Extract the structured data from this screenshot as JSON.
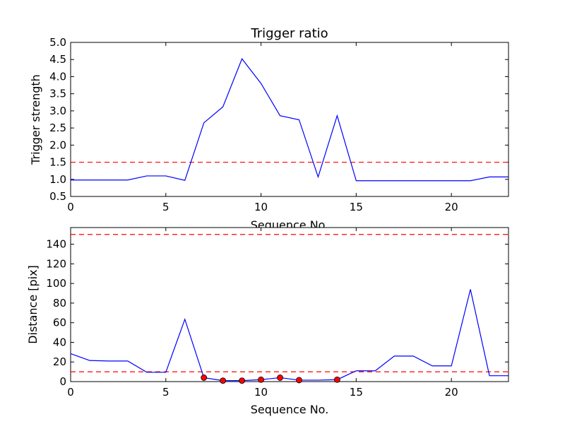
{
  "chart_data": [
    {
      "type": "line",
      "title": "Trigger ratio",
      "xlabel": "Sequence No.",
      "ylabel": "Trigger strength",
      "xlim": [
        0,
        23
      ],
      "ylim": [
        0.5,
        5.0
      ],
      "xticks": [
        0,
        5,
        10,
        15,
        20
      ],
      "yticks": [
        0.5,
        1.0,
        1.5,
        2.0,
        2.5,
        3.0,
        3.5,
        4.0,
        4.5,
        5.0
      ],
      "ytick_labels": [
        "0.5",
        "1.0",
        "1.5",
        "2.0",
        "2.5",
        "3.0",
        "3.5",
        "4.0",
        "4.5",
        "5.0"
      ],
      "line_color": "#0000ff",
      "threshold_color": "#ff0000",
      "series": [
        {
          "x": [
            0,
            1,
            2,
            3,
            4,
            5,
            6,
            7,
            8,
            9,
            10,
            11,
            12,
            13,
            14,
            15,
            16,
            17,
            18,
            19,
            20,
            21,
            22,
            23
          ],
          "values": [
            0.98,
            0.98,
            0.98,
            0.98,
            1.1,
            1.1,
            0.97,
            2.65,
            3.12,
            4.52,
            3.8,
            2.86,
            2.74,
            1.07,
            2.86,
            0.96,
            0.96,
            0.96,
            0.96,
            0.96,
            0.96,
            0.96,
            1.07,
            1.07
          ]
        }
      ],
      "threshold": 1.5
    },
    {
      "type": "line",
      "title": "",
      "xlabel": "Sequence No.",
      "ylabel": "Distance [pix]",
      "xlim": [
        0,
        23
      ],
      "ylim": [
        0,
        157
      ],
      "xticks": [
        0,
        5,
        10,
        15,
        20
      ],
      "yticks": [
        0,
        20,
        40,
        60,
        80,
        100,
        120,
        140
      ],
      "ytick_labels": [
        "0",
        "20",
        "40",
        "60",
        "80",
        "100",
        "120",
        "140"
      ],
      "line_color": "#0000ff",
      "threshold_color": "#ff0000",
      "marker_color": "#ff0000",
      "series": [
        {
          "x": [
            0,
            1,
            2,
            3,
            4,
            5,
            6,
            7,
            8,
            9,
            10,
            11,
            12,
            13,
            14,
            15,
            16,
            17,
            18,
            19,
            20,
            21,
            22,
            23
          ],
          "values": [
            28.5,
            21.5,
            21,
            21,
            9.5,
            9.5,
            63.5,
            4,
            1,
            1,
            2,
            4,
            1.5,
            1.5,
            2,
            11,
            11,
            26,
            26,
            16,
            16,
            94,
            6,
            6
          ]
        }
      ],
      "markers": {
        "x": [
          7,
          8,
          9,
          10,
          11,
          12,
          14
        ],
        "values": [
          4,
          1,
          1,
          2,
          4,
          1.5,
          2
        ]
      },
      "thresholds": [
        150,
        10
      ]
    }
  ]
}
